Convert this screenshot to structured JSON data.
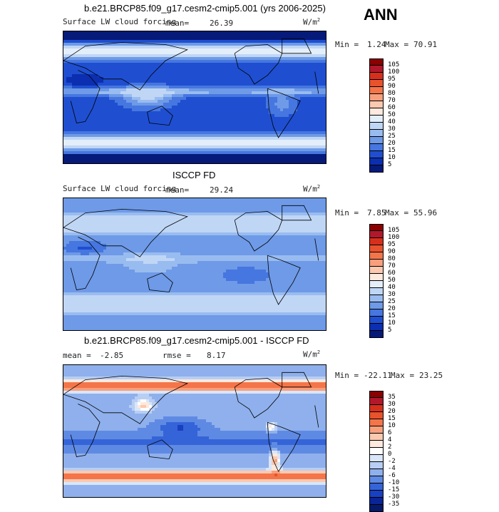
{
  "season": "ANN",
  "chart_data": [
    {
      "type": "heatmap",
      "title": "b.e21.BRCP85.f09_g17.cesm2-cmip5.001 (yrs 2006-2025)",
      "variable": "Surface LW cloud forcing",
      "mean_label": "mean=",
      "mean": "26.39",
      "units": "W/m2",
      "min_label": "Min =",
      "min": "1.24",
      "max_label": "Max =",
      "max": "70.91",
      "colorbar_levels": [
        "105",
        "100",
        "95",
        "90",
        "80",
        "70",
        "60",
        "50",
        "40",
        "30",
        "25",
        "20",
        "15",
        "10",
        "5"
      ],
      "colorbar_colors": [
        "#8b0000",
        "#b2182b",
        "#d6301d",
        "#e8532e",
        "#f4754a",
        "#f8a07d",
        "#fbc9b0",
        "#fde9dd",
        "#e3eefb",
        "#c0d6f5",
        "#99bcf0",
        "#6e9ae7",
        "#4676df",
        "#1f4fd0",
        "#0b2fb0",
        "#061a7a"
      ],
      "map_style": "model_lwcf"
    },
    {
      "type": "heatmap",
      "title": "ISCCP FD",
      "variable": "Surface LW cloud forcing",
      "mean_label": "mean=",
      "mean": "29.24",
      "units": "W/m2",
      "min_label": "Min =",
      "min": "7.85",
      "max_label": "Max =",
      "max": "55.96",
      "colorbar_levels": [
        "105",
        "100",
        "95",
        "90",
        "80",
        "70",
        "60",
        "50",
        "40",
        "30",
        "25",
        "20",
        "15",
        "10",
        "5"
      ],
      "colorbar_colors": [
        "#8b0000",
        "#b2182b",
        "#d6301d",
        "#e8532e",
        "#f4754a",
        "#f8a07d",
        "#fbc9b0",
        "#fde9dd",
        "#e3eefb",
        "#c0d6f5",
        "#99bcf0",
        "#6e9ae7",
        "#4676df",
        "#1f4fd0",
        "#0b2fb0",
        "#061a7a"
      ],
      "map_style": "obs_lwcf"
    },
    {
      "type": "heatmap",
      "title": "b.e21.BRCP85.f09_g17.cesm2-cmip5.001 - ISCCP FD",
      "mean_label": "mean =",
      "mean": "-2.85",
      "rmse_label": "rmse =",
      "rmse": "8.17",
      "units": "W/m2",
      "min_label": "Min =",
      "min": "-22.11",
      "max_label": "Max =",
      "max": "23.25",
      "colorbar_levels": [
        "35",
        "30",
        "20",
        "15",
        "10",
        "6",
        "4",
        "2",
        "0",
        "-2",
        "-4",
        "-6",
        "-10",
        "-15",
        "-30",
        "-35"
      ],
      "colorbar_colors": [
        "#8b0000",
        "#b2182b",
        "#d6301d",
        "#e8532e",
        "#f4754a",
        "#f8a07d",
        "#fbc9b0",
        "#fde9dd",
        "#ffffff",
        "#d9e6f9",
        "#b8cef3",
        "#8fb0ec",
        "#5f8ae3",
        "#3564d8",
        "#1a40c2",
        "#0a2596",
        "#061a6b"
      ],
      "map_style": "diff"
    }
  ]
}
